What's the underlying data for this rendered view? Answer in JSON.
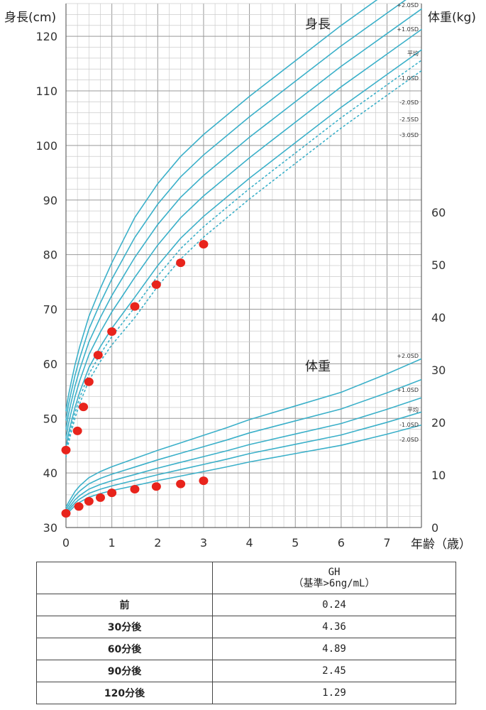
{
  "chart_data": {
    "type": "scatter",
    "y_left_label": "身長(cm)",
    "y_right_label": "体重(kg)",
    "x_label": "年齢（歳）",
    "panel_labels": {
      "height": "身長",
      "weight": "体重"
    },
    "x_ticks": [
      0,
      1,
      2,
      3,
      4,
      5,
      6,
      7
    ],
    "y_left_ticks": [
      30,
      40,
      50,
      60,
      70,
      80,
      90,
      100,
      110,
      120
    ],
    "y_right_ticks": [
      0,
      10,
      20,
      30,
      40,
      50,
      60
    ],
    "xlim": [
      0,
      7.75
    ],
    "ylim_left": [
      30,
      126
    ],
    "grid": true,
    "height_sd_labels": [
      "+2.0SD",
      "+1.0SD",
      "平均",
      "-1.0SD",
      "-2.0SD",
      "-2.5SD",
      "-3.0SD"
    ],
    "weight_sd_labels": [
      "+2.0SD",
      "+1.0SD",
      "平均",
      "-1.0SD",
      "-2.0SD"
    ],
    "height_points_cm": [
      {
        "x": 0,
        "y": 44.2
      },
      {
        "x": 0.25,
        "y": 47.7
      },
      {
        "x": 0.38,
        "y": 52.1
      },
      {
        "x": 0.5,
        "y": 56.7
      },
      {
        "x": 0.7,
        "y": 61.6
      },
      {
        "x": 1.0,
        "y": 65.9
      },
      {
        "x": 1.5,
        "y": 70.5
      },
      {
        "x": 1.97,
        "y": 74.5
      },
      {
        "x": 2.5,
        "y": 78.5
      },
      {
        "x": 3.0,
        "y": 81.9
      }
    ],
    "weight_points_kg": [
      {
        "x": 0,
        "y": 2.7
      },
      {
        "x": 0.28,
        "y": 4.0
      },
      {
        "x": 0.5,
        "y": 5.0
      },
      {
        "x": 0.75,
        "y": 5.7
      },
      {
        "x": 1.0,
        "y": 6.6
      },
      {
        "x": 1.5,
        "y": 7.3
      },
      {
        "x": 1.97,
        "y": 7.8
      },
      {
        "x": 2.5,
        "y": 8.3
      },
      {
        "x": 3.0,
        "y": 8.9
      }
    ],
    "colors": {
      "curve": "#3bb0c9",
      "point": "#e8241c",
      "grid": "#cccccc"
    }
  },
  "table": {
    "header": [
      "",
      "GH\n（基準>6ng/mL）"
    ],
    "rows": [
      {
        "label": "前",
        "value": "0.24"
      },
      {
        "label": "30分後",
        "value": "4.36"
      },
      {
        "label": "60分後",
        "value": "4.89"
      },
      {
        "label": "90分後",
        "value": "2.45"
      },
      {
        "label": "120分後",
        "value": "1.29"
      }
    ]
  }
}
